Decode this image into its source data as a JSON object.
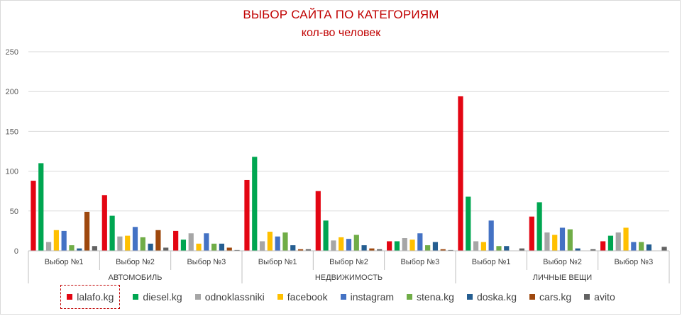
{
  "chart_data": {
    "type": "bar",
    "title": "ВЫБОР САЙТА ПО КАТЕГОРИЯМ",
    "subtitle": "кол-во человек",
    "ylim": [
      0,
      250
    ],
    "yticks": [
      0,
      50,
      100,
      150,
      200,
      250
    ],
    "grid": true,
    "legend_position": "bottom",
    "groups": [
      {
        "label": "АВТОМОБИЛЬ",
        "categories": [
          "Выбор №1",
          "Выбор №2",
          "Выбор №3"
        ]
      },
      {
        "label": "НЕДВИЖИМОСТЬ",
        "categories": [
          "Выбор №1",
          "Выбор №2",
          "Выбор №3"
        ]
      },
      {
        "label": "ЛИЧНЫЕ ВЕЩИ",
        "categories": [
          "Выбор №1",
          "Выбор №2",
          "Выбор №3"
        ]
      }
    ],
    "series": [
      {
        "name": "lalafo.kg",
        "color": "#e30613",
        "values": [
          88,
          70,
          25,
          89,
          75,
          12,
          194,
          43,
          12
        ]
      },
      {
        "name": "diesel.kg",
        "color": "#00a651",
        "values": [
          110,
          44,
          14,
          118,
          38,
          12,
          68,
          61,
          19
        ]
      },
      {
        "name": "odnoklassniki",
        "color": "#a6a6a6",
        "values": [
          11,
          18,
          22,
          12,
          13,
          16,
          12,
          23,
          23
        ]
      },
      {
        "name": "facebook",
        "color": "#ffc000",
        "values": [
          26,
          19,
          9,
          24,
          17,
          14,
          11,
          20,
          29
        ]
      },
      {
        "name": "instagram",
        "color": "#4472c4",
        "values": [
          25,
          30,
          22,
          18,
          15,
          22,
          38,
          29,
          11
        ]
      },
      {
        "name": "stena.kg",
        "color": "#70ad47",
        "values": [
          7,
          17,
          9,
          23,
          20,
          7,
          6,
          27,
          11
        ]
      },
      {
        "name": "doska.kg",
        "color": "#255e91",
        "values": [
          3,
          9,
          9,
          7,
          7,
          11,
          6,
          3,
          8
        ]
      },
      {
        "name": "cars.kg",
        "color": "#9e480e",
        "values": [
          49,
          26,
          4,
          2,
          3,
          2,
          0,
          0,
          0
        ]
      },
      {
        "name": "avito",
        "color": "#636363",
        "values": [
          6,
          4,
          1,
          2,
          2,
          1,
          3,
          2,
          5
        ]
      }
    ],
    "highlighted_legend_entry": "lalafo.kg"
  }
}
